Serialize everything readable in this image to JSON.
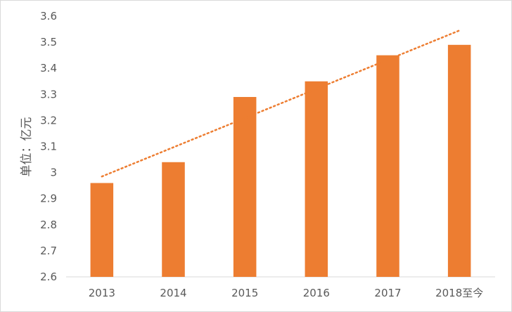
{
  "chart_data": {
    "type": "bar",
    "categories": [
      "2013",
      "2014",
      "2015",
      "2016",
      "2017",
      "2018至今"
    ],
    "values": [
      2.96,
      3.04,
      3.29,
      3.35,
      3.45,
      3.49
    ],
    "ylabel": "单位：亿元",
    "xlabel": "",
    "ylim": [
      2.6,
      3.6
    ],
    "yticks": [
      "2.6",
      "2.7",
      "2.8",
      "2.9",
      "3",
      "3.1",
      "3.2",
      "3.3",
      "3.4",
      "3.5",
      "3.6"
    ],
    "trendline": {
      "type": "linear",
      "style": "dotted",
      "start": 2.985,
      "end": 3.545
    },
    "grid": false,
    "legend": "none",
    "colors": {
      "bar": "#ed7d31",
      "trend": "#ed7d31",
      "text": "#595959",
      "axis": "#d9d9d9"
    }
  }
}
